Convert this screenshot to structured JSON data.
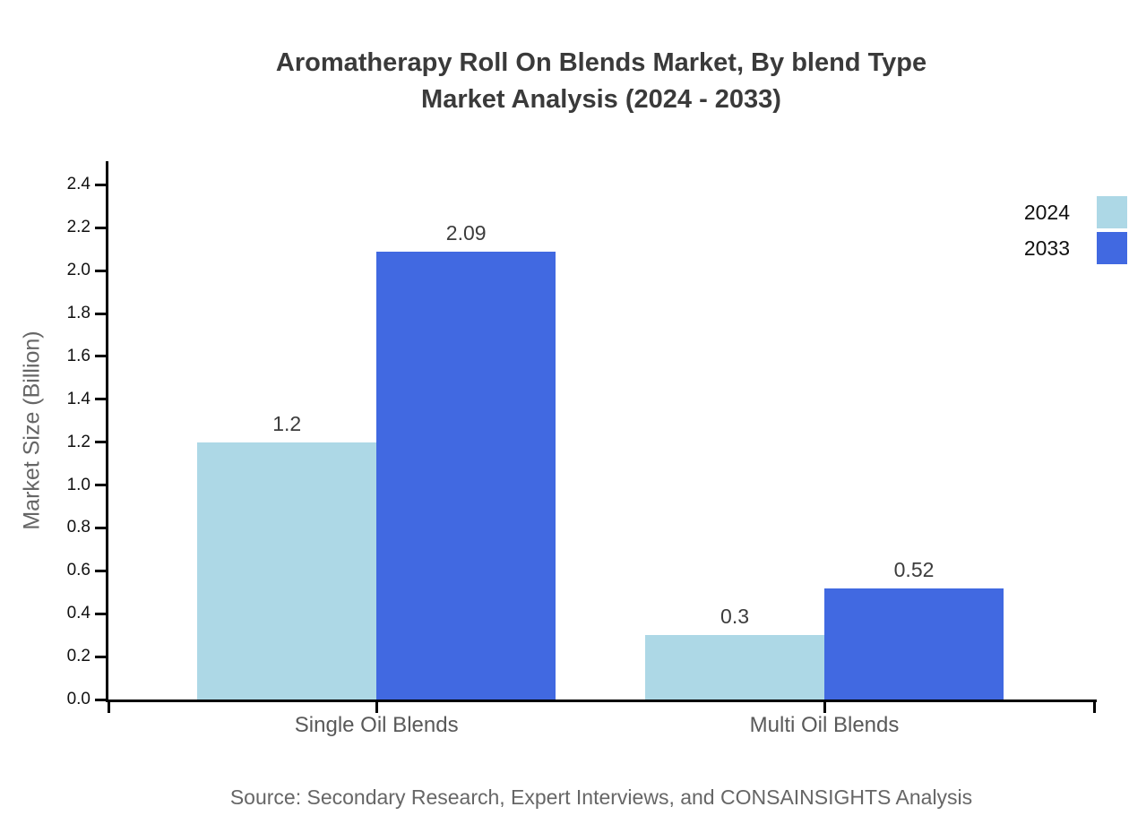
{
  "header": {
    "title_lines": [
      "Aromatherapy Roll On Blends Market, By blend Type",
      "Market Analysis (2024 - 2033)"
    ]
  },
  "footer": {
    "source": "Source: Secondary Research, Expert Interviews, and CONSAINSIGHTS Analysis"
  },
  "chart_data": {
    "type": "bar",
    "title": "Aromatherapy Roll On Blends Market, By blend Type Market Analysis (2024 - 2033)",
    "categories": [
      "Single Oil Blends",
      "Multi Oil Blends"
    ],
    "series": [
      {
        "name": "2024",
        "color": "#ADD8E6",
        "values": [
          1.2,
          0.3
        ]
      },
      {
        "name": "2033",
        "color": "#4169E1",
        "values": [
          2.09,
          0.52
        ]
      }
    ],
    "value_labels": [
      [
        "1.2",
        "2.09"
      ],
      [
        "0.3",
        "0.52"
      ]
    ],
    "xlabel": "",
    "ylabel": "Market Size (Billion)",
    "ylim": [
      0,
      2.51
    ],
    "yticks": [
      0.0,
      0.2,
      0.4,
      0.6,
      0.8,
      1.0,
      1.2,
      1.4,
      1.6,
      1.8,
      2.0,
      2.2,
      2.4
    ],
    "grid": false,
    "legend_position": "upper-right-outside",
    "axis_color": "#000000",
    "title_color": "#3a3a3a",
    "text_color": "#595959"
  }
}
